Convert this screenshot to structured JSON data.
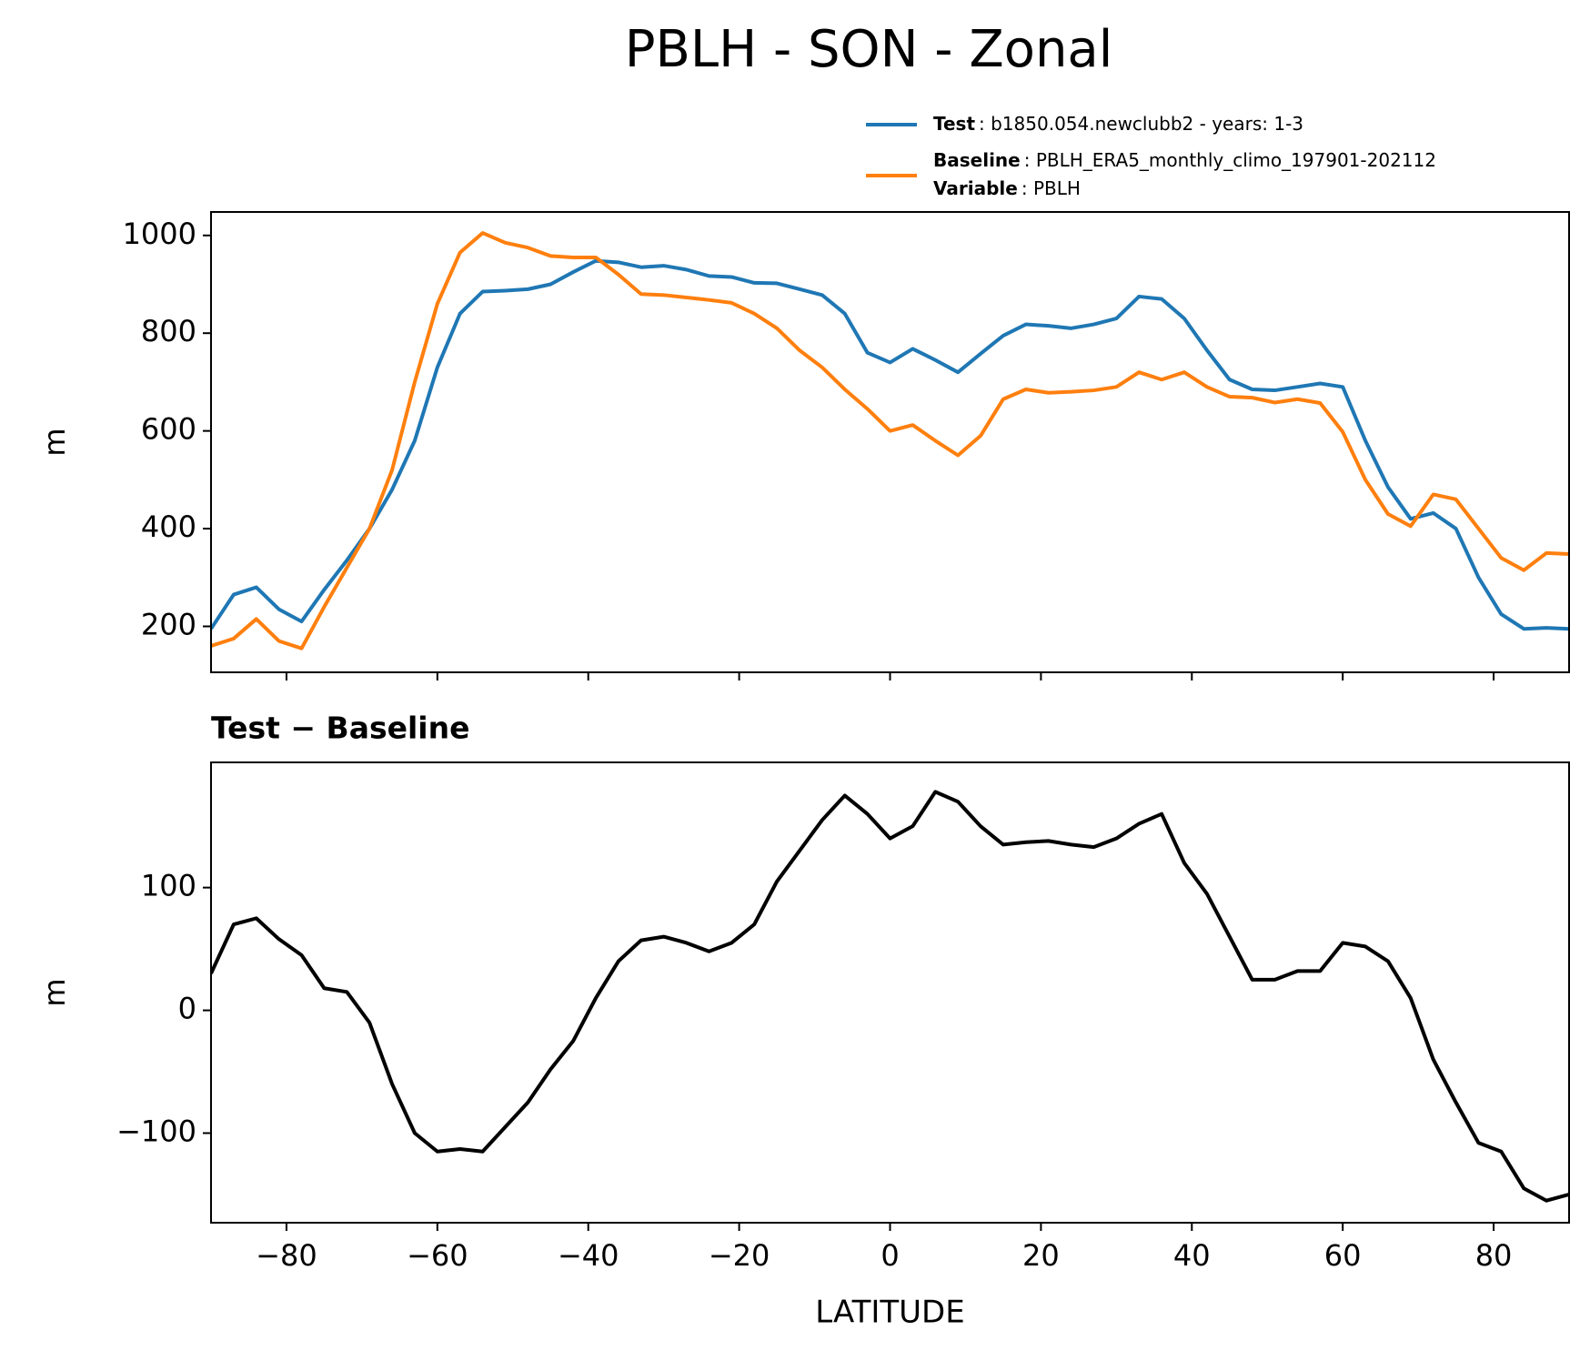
{
  "chart_data": [
    {
      "type": "line",
      "title": "PBLH - SON - Zonal",
      "ylabel": "m",
      "x": [
        -90,
        -87,
        -84,
        -81,
        -78,
        -75,
        -72,
        -69,
        -66,
        -63,
        -60,
        -57,
        -54,
        -51,
        -48,
        -45,
        -42,
        -39,
        -36,
        -33,
        -30,
        -27,
        -24,
        -21,
        -18,
        -15,
        -12,
        -9,
        -6,
        -3,
        0,
        3,
        6,
        9,
        12,
        15,
        18,
        21,
        24,
        27,
        30,
        33,
        36,
        39,
        42,
        45,
        48,
        51,
        54,
        57,
        60,
        63,
        66,
        69,
        72,
        75,
        78,
        81,
        84,
        87,
        90
      ],
      "series": [
        {
          "name": "Test",
          "label": ": b1850.054.newclubb2 - years: 1-3",
          "color": "#1f77b4",
          "values": [
            195,
            265,
            280,
            235,
            210,
            275,
            335,
            400,
            480,
            580,
            730,
            840,
            885,
            887,
            890,
            900,
            925,
            948,
            945,
            935,
            938,
            930,
            917,
            915,
            903,
            902,
            890,
            878,
            840,
            760,
            740,
            768,
            745,
            720,
            758,
            795,
            818,
            815,
            810,
            818,
            830,
            875,
            870,
            830,
            765,
            705,
            685,
            683,
            690,
            697,
            690,
            580,
            485,
            420,
            432,
            400,
            300,
            225,
            195,
            197,
            195
          ]
        },
        {
          "name": "Baseline",
          "label": ": PBLH_ERA5_monthly_climo_197901-202112",
          "color": "#ff7f0e",
          "values": [
            160,
            175,
            215,
            170,
            155,
            240,
            320,
            400,
            520,
            700,
            860,
            965,
            1005,
            985,
            975,
            958,
            955,
            955,
            920,
            880,
            878,
            873,
            868,
            862,
            840,
            810,
            765,
            730,
            685,
            645,
            600,
            612,
            580,
            550,
            590,
            665,
            685,
            678,
            680,
            683,
            690,
            720,
            705,
            720,
            690,
            670,
            668,
            658,
            665,
            657,
            598,
            500,
            430,
            405,
            470,
            460,
            400,
            340,
            315,
            350,
            348
          ]
        }
      ],
      "legend_extra": {
        "name": "Variable",
        "label": ": PBLH"
      },
      "xlim": [
        -90,
        90
      ],
      "xticks": [
        {
          "value": -80,
          "label": "−80"
        },
        {
          "value": -60,
          "label": "−60"
        },
        {
          "value": -40,
          "label": "−40"
        },
        {
          "value": -20,
          "label": "−20"
        },
        0,
        20,
        40,
        60,
        80
      ],
      "ylim": [
        106,
        1048
      ],
      "yticks": [
        200,
        400,
        600,
        800,
        1000
      ]
    },
    {
      "type": "line",
      "title": "Test − Baseline",
      "ylabel": "m",
      "xlabel": "LATITUDE",
      "x": [
        -90,
        -87,
        -84,
        -81,
        -78,
        -75,
        -72,
        -69,
        -66,
        -63,
        -60,
        -57,
        -54,
        -51,
        -48,
        -45,
        -42,
        -39,
        -36,
        -33,
        -30,
        -27,
        -24,
        -21,
        -18,
        -15,
        -12,
        -9,
        -6,
        -3,
        0,
        3,
        6,
        9,
        12,
        15,
        18,
        21,
        24,
        27,
        30,
        33,
        36,
        39,
        42,
        45,
        48,
        51,
        54,
        57,
        60,
        63,
        66,
        69,
        72,
        75,
        78,
        81,
        84,
        87,
        90
      ],
      "series": [
        {
          "color": "#000000",
          "values": [
            30,
            70,
            75,
            58,
            45,
            18,
            15,
            -10,
            -60,
            -100,
            -115,
            -113,
            -115,
            -95,
            -75,
            -48,
            -25,
            10,
            40,
            57,
            60,
            55,
            48,
            55,
            70,
            105,
            130,
            155,
            175,
            160,
            140,
            150,
            178,
            170,
            150,
            135,
            137,
            138,
            135,
            133,
            140,
            152,
            160,
            120,
            95,
            60,
            25,
            25,
            32,
            32,
            55,
            52,
            40,
            10,
            -40,
            -75,
            -108,
            -115,
            -145,
            -155,
            -150
          ]
        }
      ],
      "xlim": [
        -90,
        90
      ],
      "xticks": [
        {
          "value": -80,
          "label": "−80"
        },
        {
          "value": -60,
          "label": "−60"
        },
        {
          "value": -40,
          "label": "−40"
        },
        {
          "value": -20,
          "label": "−20"
        },
        0,
        20,
        40,
        60,
        80
      ],
      "ylim": [
        -173,
        202
      ],
      "yticks": [
        {
          "value": -100,
          "label": "−100"
        },
        0,
        100
      ]
    }
  ]
}
